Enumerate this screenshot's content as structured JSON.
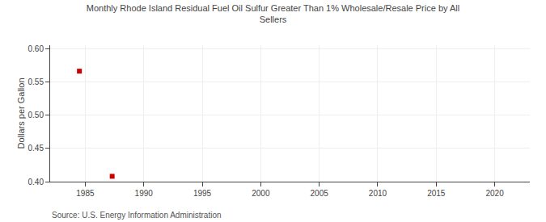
{
  "chart_data": {
    "type": "scatter",
    "title": "Monthly Rhode Island Residual Fuel Oil Sulfur Greater Than 1% Wholesale/Resale Price by All\nSellers",
    "ylabel": "Dollars per Gallon",
    "annotations": [
      "Source: U.S. Energy Information Administration"
    ],
    "x": [
      1984.5,
      1987.3
    ],
    "values": [
      0.566,
      0.408
    ],
    "color": "#cc0000",
    "marker": "square",
    "xlim": [
      1982,
      2023
    ],
    "ylim": [
      0.4,
      0.605
    ],
    "xticks": [
      1985,
      1990,
      1995,
      2000,
      2005,
      2010,
      2015,
      2020
    ],
    "yticks": [
      {
        "value": 0.4,
        "label": "0.40"
      },
      0.45,
      {
        "value": 0.5,
        "label": "0.50"
      },
      0.55,
      {
        "value": 0.6,
        "label": "0.60"
      }
    ],
    "grid": true
  }
}
